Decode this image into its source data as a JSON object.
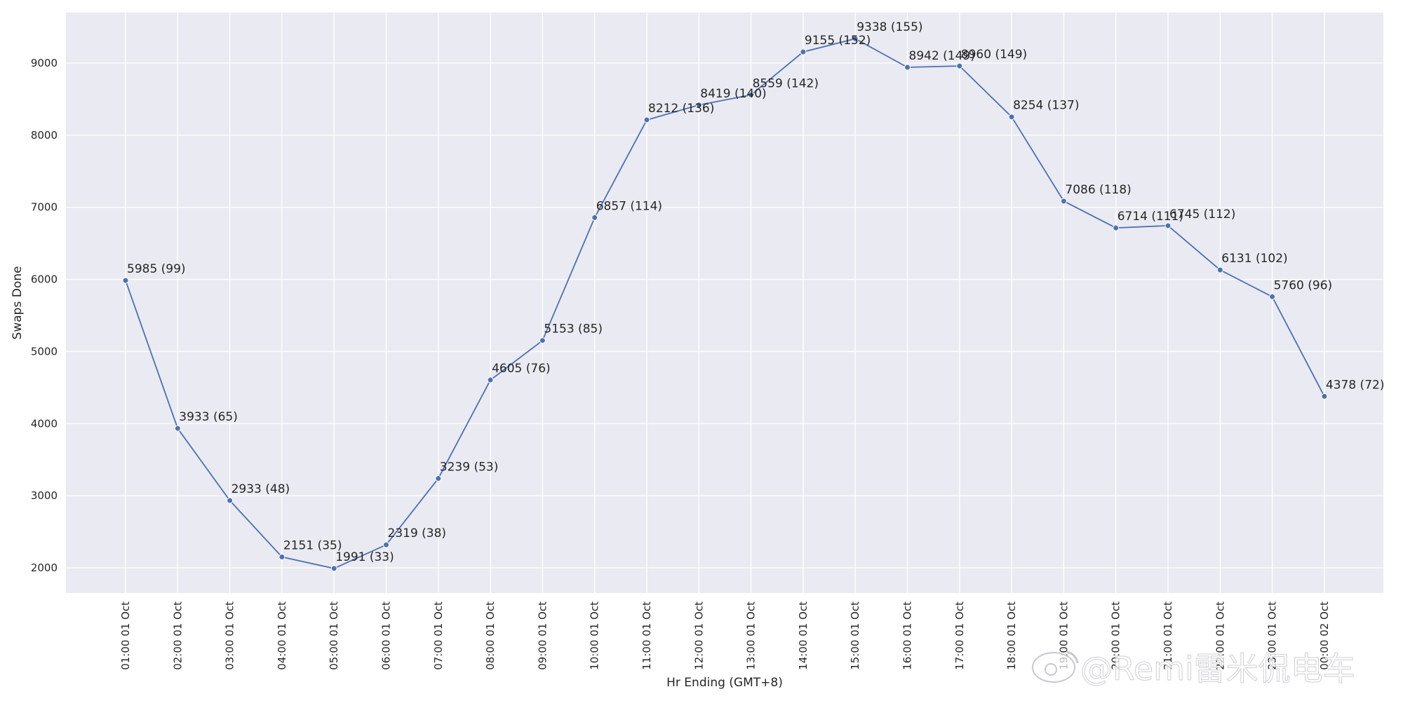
{
  "chart_data": {
    "type": "line",
    "title": "",
    "xlabel": "Hr Ending (GMT+8)",
    "ylabel": "Swaps Done",
    "ylim": [
      1650,
      9700
    ],
    "yticks": [
      2000,
      3000,
      4000,
      5000,
      6000,
      7000,
      8000,
      9000
    ],
    "grid": true,
    "background_color": "#eaeaf2",
    "line_color": "#4c72b0",
    "categories": [
      "01:00 01 Oct",
      "02:00 01 Oct",
      "03:00 01 Oct",
      "04:00 01 Oct",
      "05:00 01 Oct",
      "06:00 01 Oct",
      "07:00 01 Oct",
      "08:00 01 Oct",
      "09:00 01 Oct",
      "10:00 01 Oct",
      "11:00 01 Oct",
      "12:00 01 Oct",
      "13:00 01 Oct",
      "14:00 01 Oct",
      "15:00 01 Oct",
      "16:00 01 Oct",
      "17:00 01 Oct",
      "18:00 01 Oct",
      "19:00 01 Oct",
      "20:00 01 Oct",
      "21:00 01 Oct",
      "22:00 01 Oct",
      "23:00 01 Oct",
      "00:00 02 Oct"
    ],
    "series": [
      {
        "values": [
          5985,
          3933,
          2933,
          2151,
          1991,
          2319,
          3239,
          4605,
          5153,
          6857,
          8212,
          8419,
          8559,
          9155,
          9338,
          8942,
          8960,
          8254,
          7086,
          6714,
          6745,
          6131,
          5760,
          4378
        ],
        "labels": [
          "5985 (99)",
          "3933 (65)",
          "2933 (48)",
          "2151 (35)",
          "1991 (33)",
          "2319 (38)",
          "3239 (53)",
          "4605 (76)",
          "5153 (85)",
          "6857 (114)",
          "8212 (136)",
          "8419 (140)",
          "8559 (142)",
          "9155 (152)",
          "9338 (155)",
          "8942 (149)",
          "8960 (149)",
          "8254 (137)",
          "7086 (118)",
          "6714 (111)",
          "6745 (112)",
          "6131 (102)",
          "5760 (96)",
          "4378 (72)"
        ]
      }
    ]
  },
  "watermark": {
    "text": "@Remi雷米侃电车",
    "icon": "weibo-icon"
  }
}
